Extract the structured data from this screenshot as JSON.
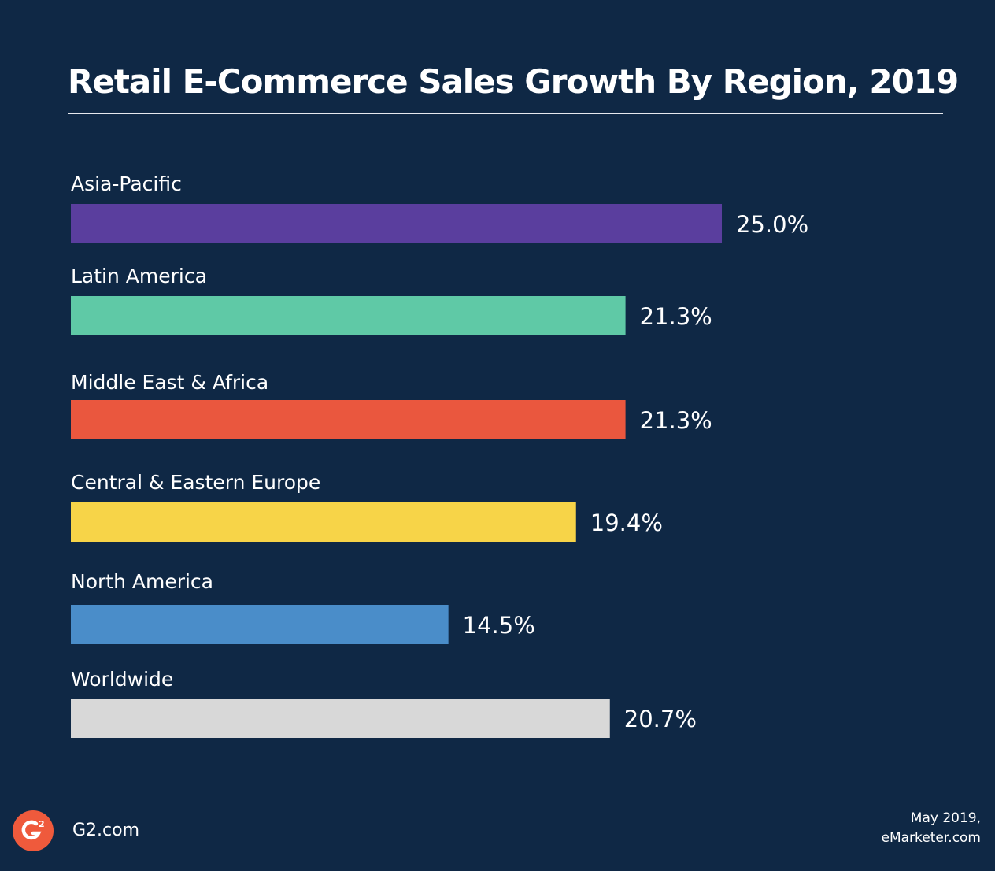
{
  "chart_data": {
    "type": "bar",
    "orientation": "horizontal",
    "title": "Retail E-Commerce Sales Growth By Region, 2019",
    "categories": [
      "Asia-Pacific",
      "Latin America",
      "Middle East & Africa",
      "Central & Eastern Europe",
      "North America",
      "Worldwide"
    ],
    "values": [
      25.0,
      21.3,
      21.3,
      19.4,
      14.5,
      20.7
    ],
    "value_labels": [
      "25.0%",
      "21.3%",
      "21.3%",
      "19.4%",
      "14.5%",
      "20.7%"
    ],
    "colors": [
      "#5a3e9e",
      "#5fc9a6",
      "#ea573e",
      "#f7d448",
      "#4a8dc9",
      "#d8d8d8"
    ],
    "unit": "%",
    "xlabel": "",
    "ylabel": "",
    "xlim": [
      0,
      25
    ],
    "grid": false,
    "legend": "none"
  },
  "footer": {
    "brand": "G2.com",
    "logo_text": "G2",
    "logo_icon": "g2-logo-icon",
    "source_line1": "May 2019,",
    "source_line2": "eMarketer.com"
  },
  "colors": {
    "background": "#0f2845",
    "text": "#ffffff",
    "logo": "#ef5a3c"
  }
}
